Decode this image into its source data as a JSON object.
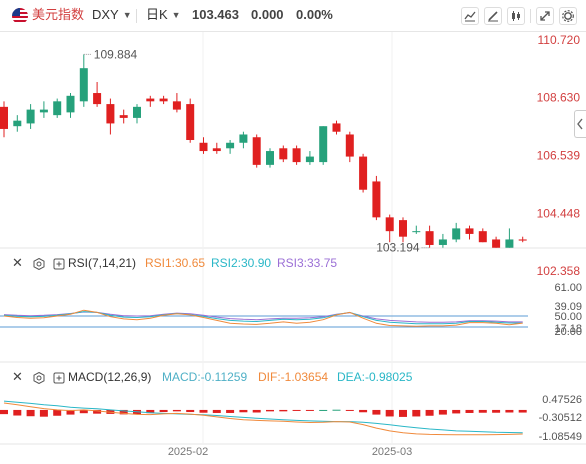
{
  "header": {
    "symbol_name": "美元指数",
    "symbol_code": "DXY",
    "timeframe": "日K",
    "last_price": "103.463",
    "change": "0.000",
    "change_pct": "0.00%"
  },
  "toolbar_icons": [
    "line-type-icon",
    "draw-icon",
    "candle-type-icon",
    "expand-icon",
    "settings-icon"
  ],
  "colors": {
    "up": "#26a17b",
    "down": "#e02020",
    "rsi1": "#f08a3c",
    "rsi2": "#2ab7c7",
    "rsi3": "#9b6fd6",
    "macd": "#4fb0c6",
    "dif": "#f08a3c",
    "dea": "#2ab7c7",
    "price_axis": "#d23f3f"
  },
  "main_chart": {
    "price_axis": [
      "110.720",
      "108.630",
      "106.539",
      "104.448",
      "102.358"
    ],
    "high_label": "109.884",
    "low_label": "103.194"
  },
  "rsi_panel": {
    "name": "RSI(7,14,21)",
    "rsi1": "RSI1:30.65",
    "rsi2": "RSI2:30.90",
    "rsi3": "RSI3:33.75",
    "axis": [
      "61.00",
      "50.00",
      "39.09",
      "20.00",
      "17.18"
    ]
  },
  "macd_panel": {
    "name": "MACD(12,26,9)",
    "macd": "MACD:-0.11259",
    "dif": "DIF:-1.03654",
    "dea": "DEA:-0.98025",
    "axis": [
      "0.47526",
      "-0.30512",
      "-1.08549"
    ]
  },
  "time_axis": [
    "2025-02",
    "2025-03"
  ],
  "chart_data": {
    "type": "candlestick",
    "ylim": [
      102.358,
      110.72
    ],
    "candles": [
      {
        "o": 108.3,
        "h": 108.5,
        "l": 107.2,
        "c": 107.5
      },
      {
        "o": 107.6,
        "h": 108.0,
        "l": 107.4,
        "c": 107.8
      },
      {
        "o": 107.7,
        "h": 108.4,
        "l": 107.5,
        "c": 108.2
      },
      {
        "o": 108.1,
        "h": 108.5,
        "l": 107.9,
        "c": 108.2
      },
      {
        "o": 108.0,
        "h": 108.6,
        "l": 107.9,
        "c": 108.5
      },
      {
        "o": 108.1,
        "h": 108.8,
        "l": 107.9,
        "c": 108.7
      },
      {
        "o": 108.5,
        "h": 110.2,
        "l": 108.3,
        "c": 109.7
      },
      {
        "o": 108.8,
        "h": 109.2,
        "l": 108.3,
        "c": 108.4
      },
      {
        "o": 108.4,
        "h": 108.6,
        "l": 107.3,
        "c": 107.7
      },
      {
        "o": 108.0,
        "h": 108.2,
        "l": 107.7,
        "c": 107.9
      },
      {
        "o": 107.9,
        "h": 108.4,
        "l": 107.7,
        "c": 108.3
      },
      {
        "o": 108.6,
        "h": 108.7,
        "l": 108.3,
        "c": 108.5
      },
      {
        "o": 108.6,
        "h": 108.7,
        "l": 108.4,
        "c": 108.5
      },
      {
        "o": 108.5,
        "h": 108.8,
        "l": 108.1,
        "c": 108.2
      },
      {
        "o": 108.4,
        "h": 108.6,
        "l": 107.0,
        "c": 107.1
      },
      {
        "o": 107.0,
        "h": 107.2,
        "l": 106.6,
        "c": 106.7
      },
      {
        "o": 106.8,
        "h": 107.0,
        "l": 106.6,
        "c": 106.7
      },
      {
        "o": 106.8,
        "h": 107.1,
        "l": 106.6,
        "c": 107.0
      },
      {
        "o": 107.0,
        "h": 107.4,
        "l": 106.8,
        "c": 107.3
      },
      {
        "o": 107.2,
        "h": 107.3,
        "l": 106.1,
        "c": 106.2
      },
      {
        "o": 106.2,
        "h": 106.8,
        "l": 106.1,
        "c": 106.7
      },
      {
        "o": 106.8,
        "h": 106.9,
        "l": 106.3,
        "c": 106.4
      },
      {
        "o": 106.8,
        "h": 106.9,
        "l": 106.2,
        "c": 106.3
      },
      {
        "o": 106.3,
        "h": 106.7,
        "l": 106.2,
        "c": 106.5
      },
      {
        "o": 106.3,
        "h": 107.6,
        "l": 106.2,
        "c": 107.6
      },
      {
        "o": 107.7,
        "h": 107.8,
        "l": 107.3,
        "c": 107.4
      },
      {
        "o": 107.3,
        "h": 107.4,
        "l": 106.3,
        "c": 106.5
      },
      {
        "o": 106.5,
        "h": 106.6,
        "l": 105.2,
        "c": 105.3
      },
      {
        "o": 105.6,
        "h": 105.8,
        "l": 104.2,
        "c": 104.3
      },
      {
        "o": 104.3,
        "h": 104.4,
        "l": 103.4,
        "c": 103.8
      },
      {
        "o": 104.2,
        "h": 104.3,
        "l": 103.4,
        "c": 103.6
      },
      {
        "o": 103.8,
        "h": 104.0,
        "l": 103.7,
        "c": 103.8
      },
      {
        "o": 103.8,
        "h": 104.0,
        "l": 103.2,
        "c": 103.3
      },
      {
        "o": 103.3,
        "h": 103.7,
        "l": 103.2,
        "c": 103.5
      },
      {
        "o": 103.5,
        "h": 104.1,
        "l": 103.4,
        "c": 103.9
      },
      {
        "o": 103.9,
        "h": 104.0,
        "l": 103.5,
        "c": 103.7
      },
      {
        "o": 103.8,
        "h": 103.9,
        "l": 103.4,
        "c": 103.4
      },
      {
        "o": 103.5,
        "h": 103.6,
        "l": 103.2,
        "c": 103.2
      },
      {
        "o": 103.2,
        "h": 103.9,
        "l": 103.2,
        "c": 103.5
      },
      {
        "o": 103.5,
        "h": 103.6,
        "l": 103.4,
        "c": 103.46
      }
    ],
    "rsi": {
      "ylim": [
        17.18,
        61.0
      ],
      "rsi1": [
        50,
        46,
        44,
        45,
        50,
        55,
        66,
        60,
        48,
        42,
        40,
        44,
        52,
        56,
        53,
        46,
        38,
        30,
        28,
        27,
        30,
        34,
        30,
        33,
        40,
        53,
        60,
        44,
        30,
        24,
        23,
        22,
        23,
        23,
        25,
        32,
        32,
        30,
        26,
        30.65
      ],
      "rsi2": [
        52,
        49,
        48,
        49,
        52,
        56,
        62,
        60,
        52,
        47,
        46,
        48,
        53,
        57,
        54,
        49,
        43,
        38,
        36,
        35,
        38,
        41,
        40,
        41,
        45,
        54,
        60,
        48,
        38,
        33,
        31,
        29,
        29,
        29,
        30,
        35,
        35,
        33,
        31,
        30.9
      ],
      "rsi3": [
        54,
        52,
        51,
        52,
        54,
        57,
        61,
        60,
        55,
        51,
        50,
        51,
        55,
        58,
        56,
        52,
        47,
        43,
        41,
        40,
        42,
        44,
        44,
        45,
        48,
        55,
        59,
        50,
        42,
        38,
        36,
        34,
        33,
        33,
        34,
        37,
        37,
        36,
        34,
        33.75
      ]
    },
    "macd": {
      "ylim": [
        -1.25,
        0.6
      ],
      "hist": [
        -0.18,
        -0.24,
        -0.27,
        -0.29,
        -0.25,
        -0.2,
        -0.14,
        -0.16,
        -0.17,
        -0.19,
        -0.18,
        -0.14,
        -0.09,
        -0.06,
        -0.09,
        -0.12,
        -0.13,
        -0.13,
        -0.1,
        -0.11,
        -0.06,
        -0.06,
        -0.04,
        -0.01,
        0.0,
        0.01,
        -0.01,
        -0.1,
        -0.2,
        -0.28,
        -0.3,
        -0.28,
        -0.25,
        -0.2,
        -0.15,
        -0.13,
        -0.12,
        -0.12,
        -0.11,
        -0.11259
      ],
      "dif": [
        0.3,
        0.22,
        0.14,
        0.06,
        0.0,
        -0.03,
        0.0,
        -0.04,
        -0.1,
        -0.15,
        -0.19,
        -0.2,
        -0.17,
        -0.15,
        -0.18,
        -0.23,
        -0.3,
        -0.37,
        -0.42,
        -0.45,
        -0.47,
        -0.49,
        -0.52,
        -0.54,
        -0.53,
        -0.5,
        -0.52,
        -0.63,
        -0.78,
        -0.9,
        -0.98,
        -1.03,
        -1.05,
        -1.06,
        -1.07,
        -1.07,
        -1.07,
        -1.06,
        -1.05,
        -1.03654
      ],
      "dea": [
        0.38,
        0.33,
        0.28,
        0.22,
        0.18,
        0.12,
        0.08,
        0.05,
        0.0,
        -0.04,
        -0.08,
        -0.12,
        -0.15,
        -0.17,
        -0.19,
        -0.21,
        -0.24,
        -0.28,
        -0.32,
        -0.36,
        -0.39,
        -0.42,
        -0.45,
        -0.47,
        -0.49,
        -0.5,
        -0.5,
        -0.53,
        -0.58,
        -0.64,
        -0.71,
        -0.77,
        -0.82,
        -0.86,
        -0.9,
        -0.92,
        -0.94,
        -0.96,
        -0.97,
        -0.98025
      ]
    }
  }
}
